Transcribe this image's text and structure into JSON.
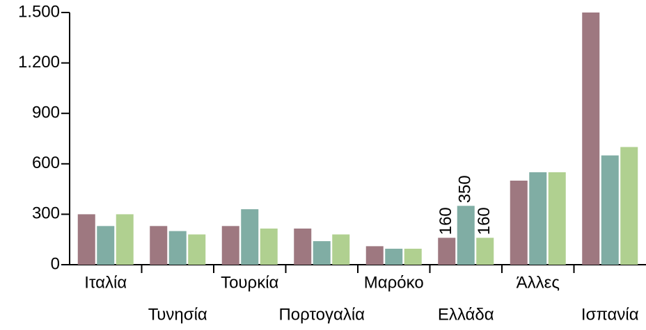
{
  "chart_data": {
    "type": "bar",
    "categories": [
      "Ιταλία",
      "Τυνησία",
      "Τουρκία",
      "Πορτογαλία",
      "Μαρόκο",
      "Ελλάδα",
      "Άλλες",
      "Ισπανία"
    ],
    "series": [
      {
        "color": "#9e7880",
        "values": [
          300,
          230,
          230,
          215,
          110,
          160,
          500,
          1500
        ],
        "value_labels": [
          null,
          null,
          null,
          null,
          null,
          "160",
          null,
          null
        ]
      },
      {
        "color": "#80ada4",
        "values": [
          230,
          200,
          330,
          140,
          95,
          350,
          550,
          650
        ],
        "value_labels": [
          null,
          null,
          null,
          null,
          null,
          "350",
          null,
          null
        ]
      },
      {
        "color": "#b0d090",
        "values": [
          300,
          180,
          215,
          180,
          95,
          160,
          550,
          700
        ],
        "value_labels": [
          null,
          null,
          null,
          null,
          null,
          "160",
          null,
          null
        ]
      }
    ],
    "ylim": [
      0,
      1500
    ],
    "yticks": [
      0,
      300,
      600,
      900,
      {
        "value": 1200,
        "label": "1.200"
      },
      {
        "value": 1500,
        "label": "1.500"
      }
    ]
  }
}
